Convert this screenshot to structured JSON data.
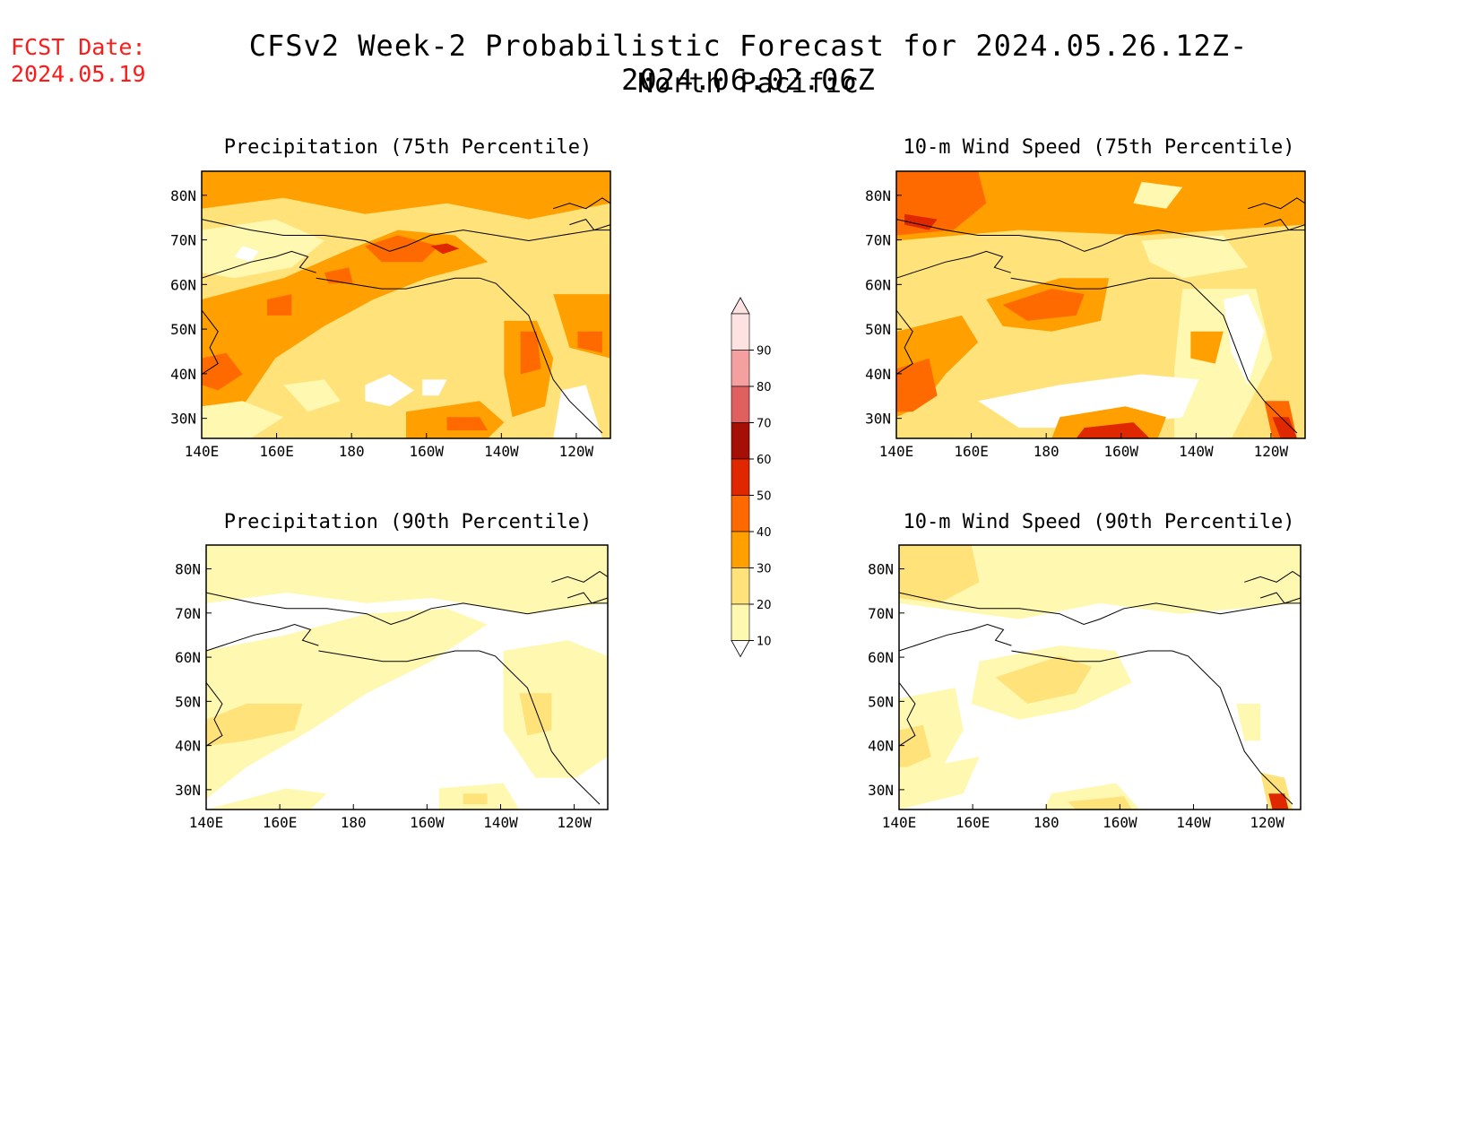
{
  "header": {
    "fcst_label": "FCST Date:",
    "fcst_date": "2024.05.19",
    "title": "CFSv2 Week-2 Probabilistic Forecast for 2024.05.26.12Z-2024.06.02.06Z",
    "subtitle": "North Pacific"
  },
  "panels": [
    {
      "title": "Precipitation (75th Percentile)",
      "variable": "precipitation",
      "percentile": 75
    },
    {
      "title": "10-m Wind Speed (75th Percentile)",
      "variable": "wind",
      "percentile": 75
    },
    {
      "title": "Precipitation (90th Percentile)",
      "variable": "precipitation",
      "percentile": 90
    },
    {
      "title": "10-m Wind Speed (90th Percentile)",
      "variable": "wind",
      "percentile": 90
    }
  ],
  "axes": {
    "lon_ticks": [
      "140E",
      "160E",
      "180",
      "160W",
      "140W",
      "120W"
    ],
    "lat_ticks": [
      "80N",
      "70N",
      "60N",
      "50N",
      "40N",
      "30N"
    ]
  },
  "colorbar": {
    "levels": [
      "90",
      "80",
      "70",
      "60",
      "50",
      "40",
      "30",
      "20",
      "10"
    ],
    "colors": [
      "#fde2e2",
      "#f4a0a0",
      "#e06060",
      "#a50f05",
      "#e02800",
      "#ff6a00",
      "#ffa000",
      "#ffe27a",
      "#fff8b0"
    ]
  },
  "palette": {
    "white": "#ffffff",
    "pale": "#fff8b0",
    "light": "#ffe27a",
    "orange": "#ffa000",
    "dark_orange": "#ff6a00",
    "red": "#e02800",
    "dark_red": "#a50f05"
  }
}
